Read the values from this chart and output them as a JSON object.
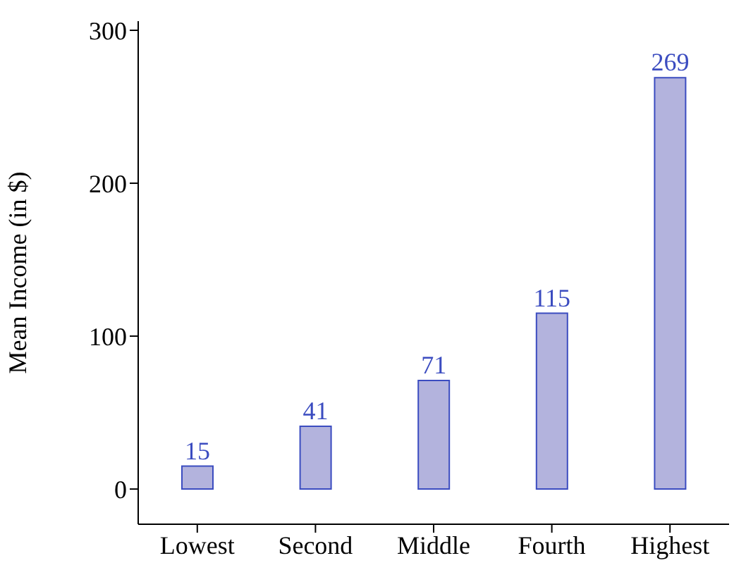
{
  "chart_data": {
    "type": "bar",
    "ylabel": "Mean Income (in $)",
    "categories": [
      "Lowest",
      "Second",
      "Middle",
      "Fourth",
      "Highest"
    ],
    "values": [
      15,
      41,
      71,
      115,
      269
    ],
    "color": "#b3b3dd",
    "data_labels": true,
    "ylim": [
      -23,
      306
    ],
    "yticks": [
      0,
      100,
      200,
      300
    ],
    "grid": false
  }
}
